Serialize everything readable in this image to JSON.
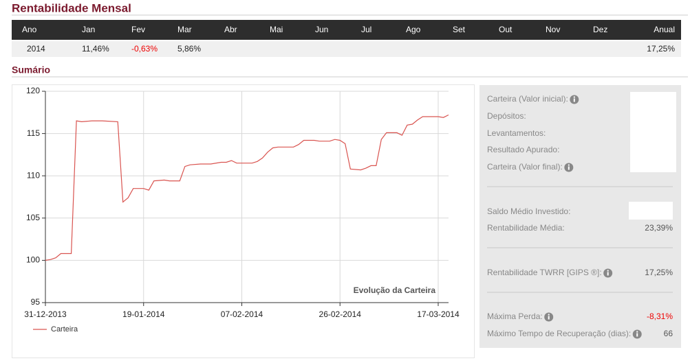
{
  "header": {
    "title": "Rentabilidade Mensal"
  },
  "table": {
    "columns": [
      "Ano",
      "Jan",
      "Fev",
      "Mar",
      "Abr",
      "Mai",
      "Jun",
      "Jul",
      "Ago",
      "Set",
      "Out",
      "Nov",
      "Dez",
      "Anual"
    ],
    "rows": [
      [
        "2014",
        "11,46%",
        "-0,63%",
        "5,86%",
        null,
        null,
        null,
        null,
        null,
        null,
        null,
        null,
        null,
        "17,25%"
      ]
    ]
  },
  "summary": {
    "title": "Sumário",
    "chart_data": {
      "type": "line",
      "annotation": "Evolução da Carteira",
      "x": [
        "31-12-2013",
        "01-01-2014",
        "02-01-2014",
        "03-01-2014",
        "05-01-2014",
        "06-01-2014",
        "07-01-2014",
        "09-01-2014",
        "11-01-2014",
        "14-01-2014",
        "15-01-2014",
        "16-01-2014",
        "17-01-2014",
        "19-01-2014",
        "20-01-2014",
        "21-01-2014",
        "23-01-2014",
        "24-01-2014",
        "26-01-2014",
        "27-01-2014",
        "28-01-2014",
        "30-01-2014",
        "01-02-2014",
        "03-02-2014",
        "04-02-2014",
        "05-02-2014",
        "06-02-2014",
        "09-02-2014",
        "10-02-2014",
        "11-02-2014",
        "12-02-2014",
        "13-02-2014",
        "14-02-2014",
        "17-02-2014",
        "18-02-2014",
        "19-02-2014",
        "21-02-2014",
        "22-02-2014",
        "24-02-2014",
        "25-02-2014",
        "26-02-2014",
        "27-02-2014",
        "28-02-2014",
        "02-03-2014",
        "03-03-2014",
        "04-03-2014",
        "05-03-2014",
        "06-03-2014",
        "07-03-2014",
        "09-03-2014",
        "10-03-2014",
        "11-03-2014",
        "12-03-2014",
        "13-03-2014",
        "14-03-2014",
        "16-03-2014",
        "17-03-2014",
        "18-03-2014",
        "19-03-2014"
      ],
      "series": [
        {
          "name": "Carteira",
          "color": "#d9534f",
          "values": [
            100.0,
            100.1,
            100.3,
            100.8,
            100.8,
            116.5,
            116.4,
            116.5,
            116.5,
            116.4,
            106.9,
            107.4,
            108.5,
            108.5,
            108.3,
            109.4,
            109.5,
            109.4,
            109.4,
            111.1,
            111.3,
            111.4,
            111.4,
            111.6,
            111.6,
            111.8,
            111.5,
            111.5,
            111.7,
            112.1,
            112.8,
            113.3,
            113.4,
            113.4,
            113.7,
            114.2,
            114.2,
            114.1,
            114.1,
            114.3,
            114.2,
            113.8,
            110.8,
            110.7,
            110.9,
            111.2,
            111.2,
            114.3,
            115.1,
            115.1,
            114.8,
            116.0,
            116.1,
            116.6,
            117.0,
            117.0,
            117.0,
            116.9,
            117.2
          ]
        }
      ],
      "xlim": [
        "31-12-2013",
        "19-03-2014"
      ],
      "xticks": [
        "31-12-2013",
        "19-01-2014",
        "07-02-2014",
        "26-02-2014",
        "17-03-2014"
      ],
      "ylim": [
        95,
        120
      ],
      "yticks": [
        95,
        100,
        105,
        110,
        115,
        120
      ],
      "grid": true
    },
    "panel": {
      "groups": [
        [
          {
            "label": "Carteira (Valor inicial):",
            "info": true,
            "value": null
          },
          {
            "label": "Depósitos:",
            "info": false,
            "value": null
          },
          {
            "label": "Levantamentos:",
            "info": false,
            "value": null
          },
          {
            "label": "Resultado Apurado:",
            "info": false,
            "value": null
          },
          {
            "label": "Carteira (Valor final):",
            "info": true,
            "value": null
          }
        ],
        [
          {
            "label": "Saldo Médio Investido:",
            "info": false,
            "value": null
          },
          {
            "label": "Rentabilidade Média:",
            "info": false,
            "value": "23,39%"
          }
        ],
        [
          {
            "label": "Rentabilidade TWRR [GIPS ®]:",
            "info": true,
            "value": "17,25%"
          }
        ],
        [
          {
            "label": "Máxima Perda:",
            "info": true,
            "value": "-8,31%"
          },
          {
            "label": "Máximo Tempo de Recuperação (dias):",
            "info": true,
            "value": "66"
          }
        ]
      ]
    }
  }
}
